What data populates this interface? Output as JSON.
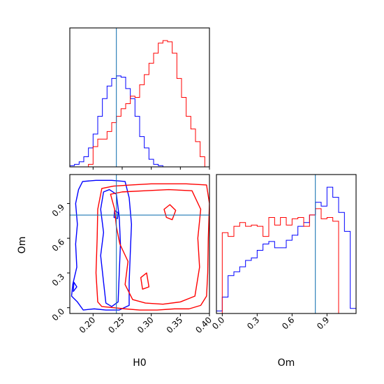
{
  "chart_data": {
    "type": "corner",
    "title": "",
    "parameters": [
      "H0",
      "Om"
    ],
    "truths": {
      "H0": 0.24,
      "Om": 0.8
    },
    "colors": {
      "series_1": "#0000ff",
      "series_2": "#ff0000",
      "truth": "#1f77b4"
    },
    "grid": false,
    "legend": "none",
    "panels": [
      {
        "id": "H0-marginal",
        "type": "histogram",
        "xlim": [
          0.16,
          0.4
        ],
        "xticks": [
          0.2,
          0.25,
          0.3,
          0.35,
          0.4
        ],
        "yticks_shown": false,
        "bin_edges": [
          0.16,
          0.168,
          0.176,
          0.184,
          0.192,
          0.2,
          0.208,
          0.216,
          0.224,
          0.232,
          0.24,
          0.248,
          0.256,
          0.264,
          0.272,
          0.28,
          0.288,
          0.296,
          0.304,
          0.312,
          0.32,
          0.328,
          0.336,
          0.344,
          0.352,
          0.36,
          0.368,
          0.376,
          0.384,
          0.392,
          0.4
        ],
        "series": [
          {
            "color": "blue",
            "counts": [
              0.01,
              0.02,
              0.04,
              0.08,
              0.15,
              0.26,
              0.4,
              0.54,
              0.64,
              0.7,
              0.72,
              0.71,
              0.62,
              0.54,
              0.4,
              0.24,
              0.15,
              0.06,
              0.02,
              0.01,
              0,
              0,
              0,
              0,
              0,
              0,
              0,
              0,
              0,
              0
            ]
          },
          {
            "color": "red",
            "counts": [
              0,
              0,
              0,
              0,
              0.02,
              0.16,
              0.22,
              0.22,
              0.28,
              0.35,
              0.4,
              0.46,
              0.5,
              0.56,
              0.55,
              0.65,
              0.73,
              0.82,
              0.9,
              0.98,
              1.0,
              0.99,
              0.9,
              0.7,
              0.55,
              0.4,
              0.3,
              0.2,
              0.08,
              0
            ]
          }
        ]
      },
      {
        "id": "Om-marginal",
        "type": "histogram",
        "xlim": [
          -0.05,
          1.15
        ],
        "xticks": [
          0.0,
          0.3,
          0.6,
          0.9
        ],
        "yticks_shown": false,
        "bin_edges": [
          -0.05,
          0.0,
          0.05,
          0.1,
          0.15,
          0.2,
          0.25,
          0.3,
          0.35,
          0.4,
          0.45,
          0.5,
          0.55,
          0.6,
          0.65,
          0.7,
          0.75,
          0.8,
          0.85,
          0.9,
          0.95,
          1.0,
          1.05,
          1.1,
          1.15
        ],
        "series": [
          {
            "color": "blue",
            "counts": [
              0.02,
              0.13,
              0.3,
              0.33,
              0.37,
              0.42,
              0.44,
              0.5,
              0.55,
              0.57,
              0.52,
              0.52,
              0.58,
              0.62,
              0.69,
              0.72,
              0.78,
              0.88,
              0.85,
              1.0,
              0.92,
              0.8,
              0.65,
              0.04
            ]
          },
          {
            "color": "red",
            "counts": [
              0,
              0.64,
              0.61,
              0.69,
              0.72,
              0.69,
              0.7,
              0.69,
              0.61,
              0.76,
              0.7,
              0.76,
              0.7,
              0.75,
              0.76,
              0.69,
              0.78,
              0.83,
              0.75,
              0.76,
              0.73,
              0,
              0,
              0
            ]
          }
        ]
      },
      {
        "id": "H0-Om-contours",
        "type": "contour",
        "xlim": [
          0.16,
          0.4
        ],
        "ylim": [
          -0.05,
          1.15
        ],
        "xticks": [
          0.2,
          0.25,
          0.3,
          0.35,
          0.4
        ],
        "yticks": [
          0.0,
          0.3,
          0.6,
          0.9
        ],
        "xlabel": "H0",
        "ylabel": "Om",
        "series": [
          {
            "color": "blue",
            "contours": [
              [
                [
                  0.182,
                  1.09
                ],
                [
                  0.205,
                  1.1
                ],
                [
                  0.232,
                  1.1
                ],
                [
                  0.255,
                  1.09
                ],
                [
                  0.262,
                  0.95
                ],
                [
                  0.266,
                  0.72
                ],
                [
                  0.264,
                  0.48
                ],
                [
                  0.262,
                  0.22
                ],
                [
                  0.262,
                  0.02
                ],
                [
                  0.245,
                  -0.02
                ],
                [
                  0.222,
                  -0.02
                ],
                [
                  0.202,
                  -0.01
                ],
                [
                  0.183,
                  -0.02
                ],
                [
                  0.173,
                  0.05
                ],
                [
                  0.163,
                  0.1
                ],
                [
                  0.165,
                  0.2
                ],
                [
                  0.172,
                  0.35
                ],
                [
                  0.17,
                  0.55
                ],
                [
                  0.173,
                  0.72
                ],
                [
                  0.17,
                  0.9
                ],
                [
                  0.175,
                  1.02
                ],
                [
                  0.182,
                  1.09
                ]
              ],
              [
                [
                  0.218,
                  1.0
                ],
                [
                  0.228,
                  1.02
                ],
                [
                  0.24,
                  0.98
                ],
                [
                  0.245,
                  0.78
                ],
                [
                  0.247,
                  0.55
                ],
                [
                  0.245,
                  0.3
                ],
                [
                  0.243,
                  0.05
                ],
                [
                  0.232,
                  0.01
                ],
                [
                  0.222,
                  0.04
                ],
                [
                  0.218,
                  0.22
                ],
                [
                  0.213,
                  0.45
                ],
                [
                  0.218,
                  0.65
                ],
                [
                  0.213,
                  0.85
                ],
                [
                  0.218,
                  1.0
                ]
              ],
              [
                [
                  0.237,
                  0.84
                ],
                [
                  0.243,
                  0.82
                ],
                [
                  0.242,
                  0.77
                ],
                [
                  0.236,
                  0.78
                ],
                [
                  0.237,
                  0.84
                ]
              ],
              [
                [
                  0.167,
                  0.22
                ],
                [
                  0.172,
                  0.18
                ],
                [
                  0.166,
                  0.14
                ],
                [
                  0.167,
                  0.22
                ]
              ]
            ]
          },
          {
            "color": "red",
            "contours": [
              [
                [
                  0.215,
                  1.03
                ],
                [
                  0.235,
                  1.05
                ],
                [
                  0.265,
                  1.06
                ],
                [
                  0.3,
                  1.07
                ],
                [
                  0.33,
                  1.07
                ],
                [
                  0.36,
                  1.07
                ],
                [
                  0.395,
                  1.06
                ],
                [
                  0.4,
                  0.9
                ],
                [
                  0.398,
                  0.6
                ],
                [
                  0.397,
                  0.3
                ],
                [
                  0.395,
                  0.1
                ],
                [
                  0.385,
                  0.02
                ],
                [
                  0.365,
                  -0.01
                ],
                [
                  0.34,
                  -0.01
                ],
                [
                  0.31,
                  -0.02
                ],
                [
                  0.28,
                  -0.02
                ],
                [
                  0.255,
                  -0.01
                ],
                [
                  0.235,
                  0.0
                ],
                [
                  0.215,
                  0.01
                ],
                [
                  0.208,
                  0.05
                ],
                [
                  0.205,
                  0.3
                ],
                [
                  0.207,
                  0.6
                ],
                [
                  0.208,
                  0.85
                ],
                [
                  0.215,
                  1.03
                ]
              ],
              [
                [
                  0.23,
                  0.98
                ],
                [
                  0.25,
                  1.0
                ],
                [
                  0.29,
                  1.01
                ],
                [
                  0.33,
                  1.02
                ],
                [
                  0.37,
                  1.01
                ],
                [
                  0.385,
                  0.85
                ],
                [
                  0.38,
                  0.6
                ],
                [
                  0.383,
                  0.35
                ],
                [
                  0.375,
                  0.1
                ],
                [
                  0.35,
                  0.05
                ],
                [
                  0.32,
                  0.03
                ],
                [
                  0.29,
                  0.04
                ],
                [
                  0.268,
                  0.07
                ],
                [
                  0.255,
                  0.2
                ],
                [
                  0.26,
                  0.4
                ],
                [
                  0.246,
                  0.55
                ],
                [
                  0.24,
                  0.7
                ],
                [
                  0.237,
                  0.85
                ],
                [
                  0.23,
                  0.98
                ]
              ],
              [
                [
                  0.322,
                  0.85
                ],
                [
                  0.332,
                  0.89
                ],
                [
                  0.342,
                  0.84
                ],
                [
                  0.336,
                  0.76
                ],
                [
                  0.326,
                  0.78
                ],
                [
                  0.322,
                  0.85
                ]
              ],
              [
                [
                  0.282,
                  0.26
                ],
                [
                  0.292,
                  0.3
                ],
                [
                  0.296,
                  0.18
                ],
                [
                  0.285,
                  0.16
                ],
                [
                  0.282,
                  0.26
                ]
              ]
            ]
          }
        ]
      }
    ]
  }
}
